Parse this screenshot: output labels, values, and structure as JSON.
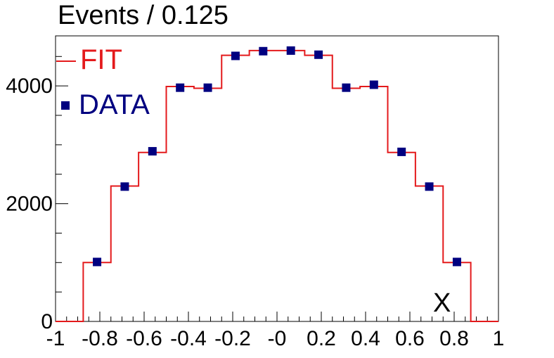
{
  "chart_data": {
    "type": "histogram",
    "title": "Events / 0.125",
    "xlabel": "X",
    "ylabel": "",
    "xlim": [
      -1,
      1
    ],
    "ylim": [
      0,
      4850
    ],
    "x_ticks": [
      -1,
      -0.8,
      -0.6,
      -0.4,
      -0.2,
      0,
      0.2,
      0.4,
      0.6,
      0.8,
      1
    ],
    "x_tick_labels": [
      "-1",
      "-0.8",
      "-0.6",
      "-0.4",
      "-0.2",
      "-0",
      "0.2",
      "0.4",
      "0.6",
      "0.8",
      "1"
    ],
    "y_ticks": [
      0,
      2000,
      4000
    ],
    "y_tick_labels": [
      "0",
      "2000",
      "4000"
    ],
    "bin_edges": [
      -1,
      -0.875,
      -0.75,
      -0.625,
      -0.5,
      -0.375,
      -0.25,
      -0.125,
      0,
      0.125,
      0.25,
      0.375,
      0.5,
      0.625,
      0.75,
      0.875,
      1
    ],
    "series": [
      {
        "name": "FIT",
        "style": "step",
        "color": "#e41a1c",
        "values": [
          0,
          1000,
          2300,
          2870,
          3990,
          3960,
          4520,
          4600,
          4600,
          4520,
          3960,
          3990,
          2870,
          2300,
          1000,
          0
        ]
      },
      {
        "name": "DATA",
        "style": "marker",
        "color": "#000080",
        "x": [
          -0.8125,
          -0.6875,
          -0.5625,
          -0.4375,
          -0.3125,
          -0.1875,
          -0.0625,
          0.0625,
          0.1875,
          0.3125,
          0.4375,
          0.5625,
          0.6875,
          0.8125
        ],
        "values": [
          1010,
          2290,
          2890,
          3970,
          3970,
          4510,
          4590,
          4600,
          4530,
          3970,
          4020,
          2880,
          2290,
          1010
        ]
      }
    ],
    "legend": {
      "placement": "top-left",
      "entries": [
        "FIT",
        "DATA"
      ]
    }
  }
}
